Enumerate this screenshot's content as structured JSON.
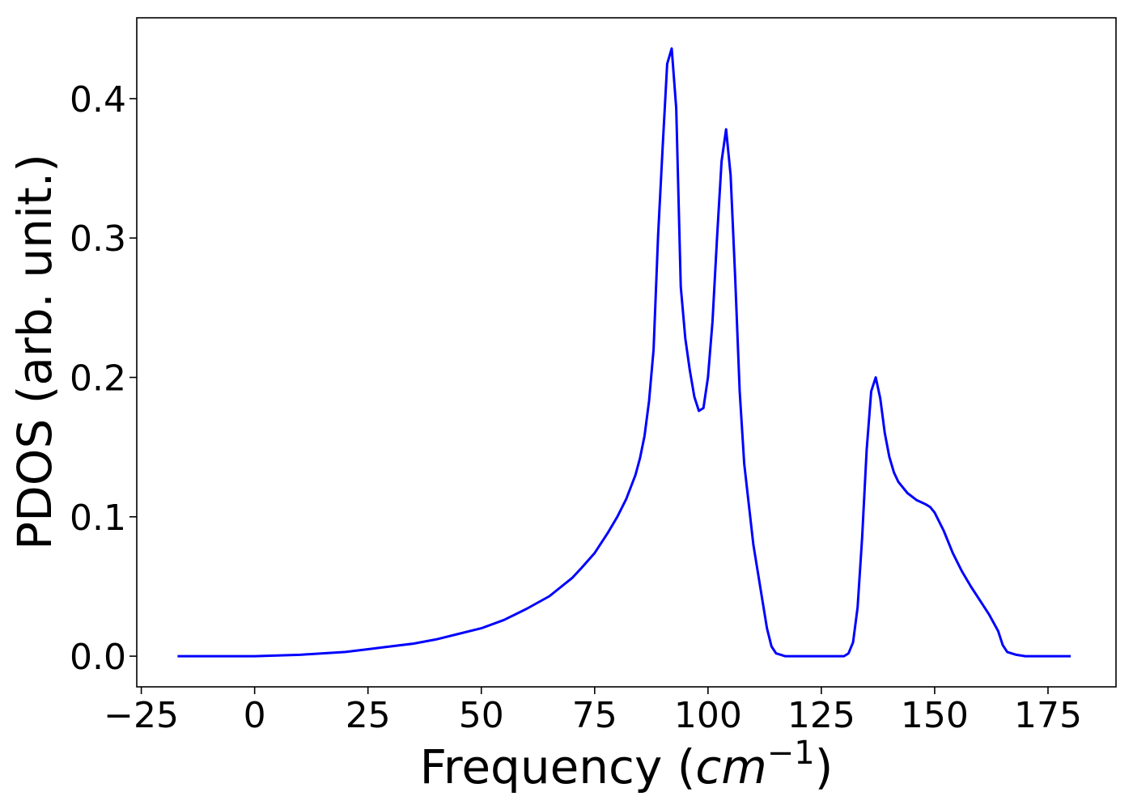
{
  "chart_data": {
    "type": "line",
    "title": "",
    "xlabel_main": "Frequency (",
    "xlabel_unit": "cm",
    "xlabel_exp": "−1",
    "xlabel_close": ")",
    "ylabel": "PDOS (arb. unit.)",
    "xlim": [
      -26,
      190
    ],
    "ylim": [
      -0.022,
      0.458
    ],
    "xticks": [
      -25,
      0,
      25,
      50,
      75,
      100,
      125,
      150,
      175
    ],
    "xtick_labels": [
      "−25",
      "0",
      "25",
      "50",
      "75",
      "100",
      "125",
      "150",
      "175"
    ],
    "yticks": [
      0.0,
      0.1,
      0.2,
      0.3,
      0.4
    ],
    "ytick_labels": [
      "0.0",
      "0.1",
      "0.2",
      "0.3",
      "0.4"
    ],
    "grid": false,
    "line_color": "#0000ff",
    "series": [
      {
        "x": [
          -17,
          -10,
          0,
          5,
          10,
          15,
          20,
          25,
          30,
          35,
          40,
          45,
          50,
          55,
          60,
          65,
          70,
          72,
          75,
          78,
          80,
          82,
          84,
          85,
          86,
          87,
          88,
          89,
          90,
          91,
          92,
          93,
          94,
          95,
          96,
          97,
          98,
          99,
          100,
          101,
          102,
          103,
          104,
          105,
          106,
          107,
          108,
          110,
          112,
          113,
          114,
          115,
          117,
          120,
          125,
          130,
          131,
          132,
          133,
          134,
          135,
          136,
          137,
          138,
          139,
          140,
          141,
          142,
          144,
          146,
          148,
          149,
          150,
          152,
          154,
          156,
          158,
          160,
          162,
          164,
          165,
          166,
          168,
          170,
          175,
          180
        ],
        "y": [
          0.0,
          0.0,
          0.0,
          0.0005,
          0.001,
          0.002,
          0.003,
          0.005,
          0.007,
          0.009,
          0.012,
          0.016,
          0.02,
          0.026,
          0.034,
          0.043,
          0.056,
          0.063,
          0.074,
          0.089,
          0.1,
          0.113,
          0.13,
          0.142,
          0.158,
          0.183,
          0.22,
          0.302,
          0.365,
          0.425,
          0.436,
          0.393,
          0.265,
          0.228,
          0.205,
          0.186,
          0.176,
          0.178,
          0.2,
          0.24,
          0.3,
          0.355,
          0.378,
          0.345,
          0.272,
          0.19,
          0.138,
          0.08,
          0.04,
          0.02,
          0.007,
          0.002,
          0.0,
          0.0,
          0.0,
          0.0,
          0.002,
          0.01,
          0.035,
          0.085,
          0.148,
          0.19,
          0.2,
          0.185,
          0.16,
          0.143,
          0.132,
          0.125,
          0.117,
          0.112,
          0.109,
          0.107,
          0.103,
          0.09,
          0.074,
          0.061,
          0.05,
          0.04,
          0.03,
          0.018,
          0.008,
          0.003,
          0.001,
          0.0,
          0.0,
          0.0
        ]
      }
    ]
  }
}
